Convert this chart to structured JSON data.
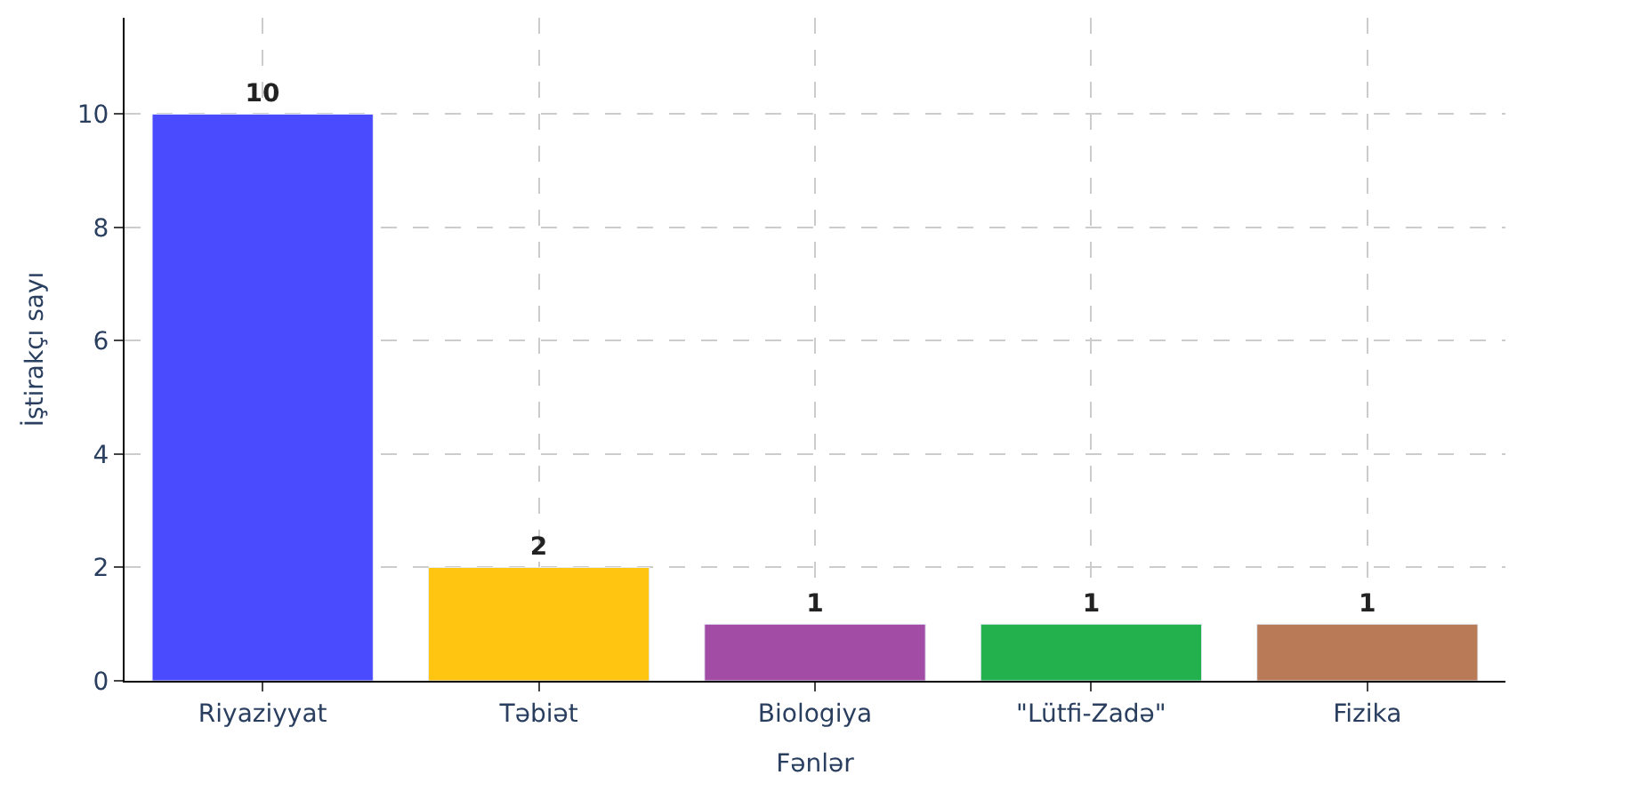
{
  "chart_data": {
    "type": "bar",
    "xlabel": "Fənlər",
    "ylabel": "İştirakçı sayı",
    "categories": [
      "Riyaziyyat",
      "Təbiət",
      "Biologiya",
      "\"Lütfi-Zadə\"",
      "Fizika"
    ],
    "values": [
      10,
      2,
      1,
      1,
      1
    ],
    "colors": [
      "#4a4aff",
      "#ffc510",
      "#a24ca6",
      "#22b14c",
      "#b97a57"
    ],
    "ylim": [
      0,
      11.7
    ],
    "yticks": [
      0,
      2,
      4,
      6,
      8,
      10
    ],
    "grid": true,
    "data_labels": true
  }
}
